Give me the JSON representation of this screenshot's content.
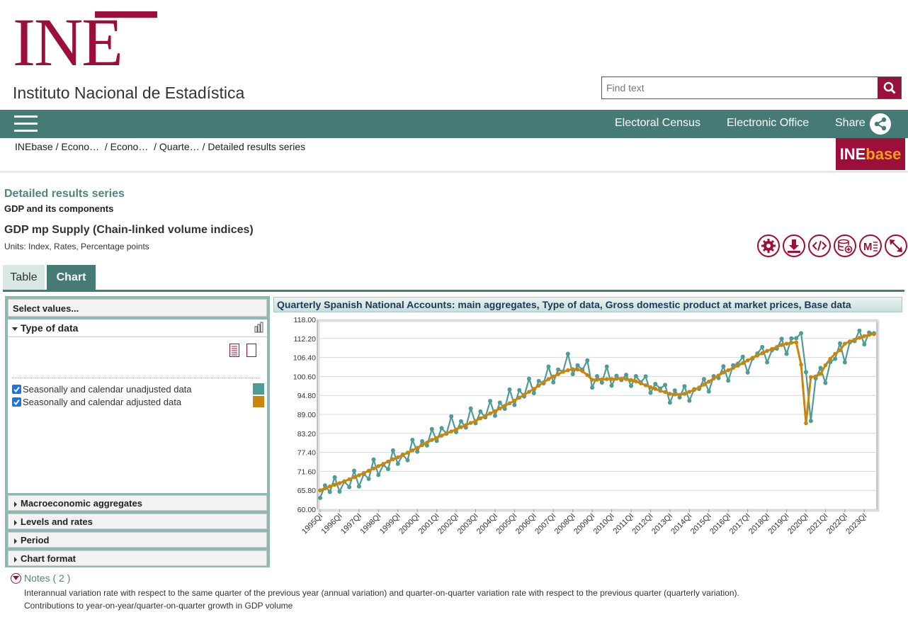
{
  "header": {
    "logo_text": "INE",
    "logo_subtitle": "Instituto Nacional de Estadística",
    "search_placeholder": "Find text",
    "brand_color": "#9c0f3a",
    "nav_color": "#457b74"
  },
  "nav": {
    "links": [
      "Electoral Census",
      "Electronic Office",
      "Share"
    ]
  },
  "breadcrumb": [
    "INEbase",
    "Econo…",
    "Econo…",
    "Quarte…",
    "Detailed results series"
  ],
  "inebase_logo": {
    "ine": "INE",
    "base": "base"
  },
  "page": {
    "section_title": "Detailed results series",
    "section_subtitle": "GDP and its components",
    "series_title": "GDP mp Supply (Chain-linked volume indices)",
    "units": "Units:  Index, Rates, Percentage points"
  },
  "toolbar_icons": [
    "gear-icon",
    "download-icon",
    "embed-code-icon",
    "database-add-icon",
    "metadata-icon",
    "expand-icon"
  ],
  "tabs": [
    "Table",
    "Chart"
  ],
  "selector": {
    "header": "Select values...",
    "open_group": "Type of data",
    "options": [
      {
        "label": "Seasonally and calendar unadjusted data",
        "checked": true,
        "color": "#4f9b96"
      },
      {
        "label": "Seasonally and calendar adjusted data",
        "checked": true,
        "color": "#c8860f"
      }
    ],
    "collapsed_groups": [
      "Macroeconomic aggregates",
      "Levels and rates",
      "Period",
      "Chart format"
    ]
  },
  "notes": {
    "title": "Notes ( 2 )",
    "lines": [
      "Interannual variation rate with respect to the same quarter of the previous year (annual variation) and quarter-on-quarter variation rate with respect to the previous quarter (quarterly variation).",
      "Contributions to year-on-year/quarter-on-quarter growth in GDP volume"
    ]
  },
  "chart_data": {
    "type": "line",
    "title": "Quarterly Spanish National Accounts: main aggregates, Type of data, Gross domestic product at market prices, Base data",
    "ylim": [
      60.0,
      118.0
    ],
    "y_ticks": [
      "60.00",
      "65.80",
      "71.60",
      "77.40",
      "83.20",
      "89.00",
      "94.80",
      "100.60",
      "106.40",
      "112.20",
      "118.00"
    ],
    "x_tick_labels": [
      "1995QI",
      "1996QI",
      "1997QI",
      "1998QI",
      "1999QI",
      "2000QI",
      "2001QI",
      "2002QI",
      "2003QI",
      "2004QI",
      "2005QI",
      "2006QI",
      "2007QI",
      "2008QI",
      "2009QI",
      "2010QI",
      "2011QI",
      "2012QI",
      "2013QI",
      "2014QI",
      "2015QI",
      "2016QI",
      "2017QI",
      "2018QI",
      "2019QI",
      "2020QI",
      "2021QI",
      "2022QI",
      "2023QI"
    ],
    "grid": true,
    "legend": "none",
    "series": [
      {
        "name": "Seasonally and calendar unadjusted data",
        "color": "#4f9b96",
        "values": [
          63.5,
          67.3,
          65.3,
          69.8,
          65.4,
          68.5,
          66.8,
          71.8,
          67.0,
          70.8,
          69.3,
          75.2,
          70.5,
          73.6,
          72.3,
          78.0,
          73.9,
          76.7,
          75.0,
          81.2,
          77.6,
          80.8,
          79.5,
          84.5,
          80.9,
          84.8,
          83.1,
          88.4,
          83.6,
          86.9,
          85.0,
          90.8,
          86.3,
          89.9,
          88.1,
          93.1,
          88.6,
          92.6,
          90.7,
          96.6,
          91.9,
          96.4,
          94.5,
          99.9,
          95.5,
          99.2,
          98.5,
          103.6,
          98.8,
          102.7,
          102.1,
          107.5,
          101.3,
          104.0,
          102.6,
          105.5,
          97.2,
          100.7,
          98.7,
          103.6,
          97.8,
          100.8,
          99.5,
          101.1,
          97.7,
          100.7,
          98.8,
          100.6,
          95.6,
          98.3,
          96.9,
          98.0,
          92.6,
          96.3,
          94.2,
          97.6,
          93.2,
          96.7,
          96.8,
          99.8,
          96.0,
          100.7,
          100.1,
          103.7,
          99.3,
          104.0,
          104.5,
          106.6,
          101.8,
          106.1,
          107.6,
          109.6,
          104.9,
          108.6,
          109.1,
          112.1,
          107.5,
          112.2,
          112.3,
          113.8,
          101.9,
          87.0,
          100.0,
          103.2,
          98.6,
          105.0,
          106.0,
          110.7,
          104.9,
          111.0,
          111.4,
          114.6,
          110.4,
          114.0,
          113.8
        ]
      },
      {
        "name": "Seasonally and calendar adjusted data",
        "color": "#c8860f",
        "values": [
          65.8,
          66.4,
          67.0,
          67.5,
          68.0,
          68.6,
          69.2,
          69.8,
          70.4,
          71.1,
          71.8,
          72.5,
          73.2,
          73.9,
          74.6,
          75.3,
          75.9,
          76.6,
          77.3,
          78.0,
          78.8,
          79.6,
          80.4,
          81.2,
          81.8,
          82.5,
          83.2,
          83.8,
          84.4,
          85.1,
          85.7,
          86.4,
          87.0,
          87.8,
          88.5,
          89.3,
          90.0,
          90.8,
          91.6,
          92.4,
          93.2,
          94.1,
          95.0,
          95.9,
          96.8,
          97.8,
          98.8,
          99.8,
          100.6,
          101.3,
          102.0,
          102.5,
          102.8,
          102.7,
          102.2,
          101.0,
          99.6,
          99.6,
          99.7,
          99.8,
          99.8,
          99.9,
          99.9,
          99.8,
          99.5,
          99.1,
          98.5,
          97.9,
          97.3,
          96.8,
          96.2,
          95.8,
          95.3,
          95.1,
          95.0,
          95.3,
          95.9,
          96.5,
          97.2,
          98.1,
          99.0,
          100.0,
          100.9,
          101.8,
          102.5,
          103.2,
          103.9,
          104.7,
          105.5,
          106.3,
          107.0,
          107.7,
          108.4,
          109.0,
          109.6,
          110.2,
          110.6,
          110.9,
          111.0,
          104.2,
          86.3,
          100.4,
          100.6,
          101.4,
          104.0,
          106.0,
          107.5,
          108.6,
          110.6,
          111.3,
          111.8,
          112.4,
          112.9,
          113.3,
          113.5
        ]
      }
    ]
  }
}
